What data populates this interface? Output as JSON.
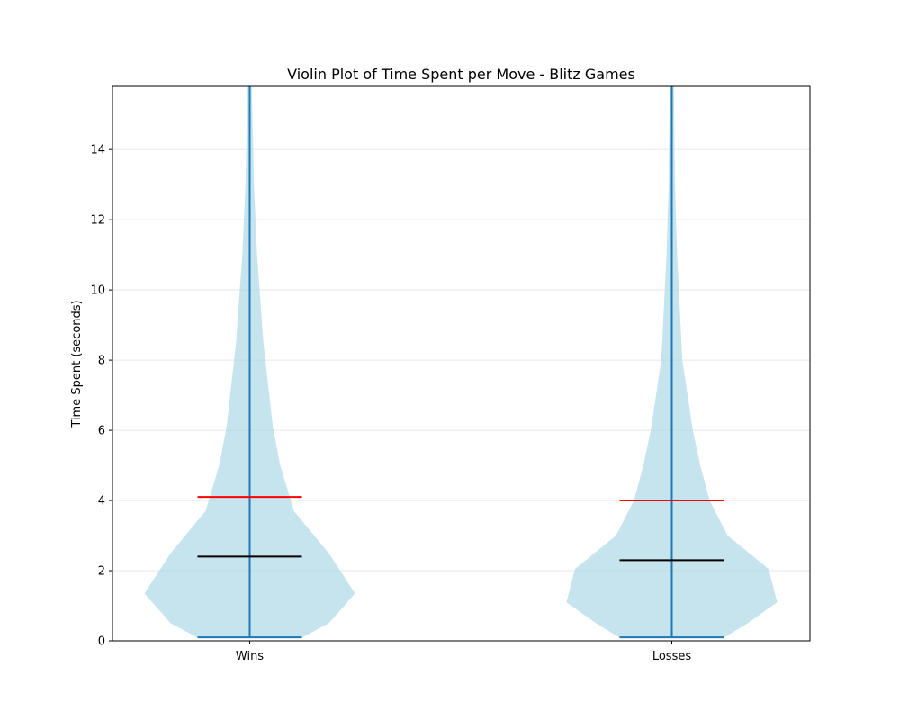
{
  "chart_data": {
    "type": "violin",
    "title": "Violin Plot of Time Spent per Move - Blitz Games",
    "xlabel": "",
    "ylabel": "Time Spent (seconds)",
    "ylim": [
      0,
      15.8
    ],
    "yticks": [
      0,
      2,
      4,
      6,
      8,
      10,
      12,
      14
    ],
    "grid": "y",
    "categories": [
      "Wins",
      "Losses"
    ],
    "series": [
      {
        "category": "Wins",
        "min": 0.1,
        "max": 15.8,
        "median": 2.4,
        "mean": 4.1,
        "density_profile": [
          [
            0.1,
            0.5
          ],
          [
            0.5,
            0.75
          ],
          [
            1.35,
            1.0
          ],
          [
            2.5,
            0.75
          ],
          [
            3.7,
            0.42
          ],
          [
            5.0,
            0.29
          ],
          [
            6.1,
            0.22
          ],
          [
            8.5,
            0.13
          ],
          [
            11.0,
            0.07
          ],
          [
            13.0,
            0.04
          ],
          [
            15.8,
            0.02
          ]
        ]
      },
      {
        "category": "Losses",
        "min": 0.1,
        "max": 15.8,
        "median": 2.3,
        "mean": 4.0,
        "density_profile": [
          [
            0.1,
            0.5
          ],
          [
            0.5,
            0.72
          ],
          [
            1.1,
            1.0
          ],
          [
            2.05,
            0.92
          ],
          [
            3.0,
            0.53
          ],
          [
            4.0,
            0.36
          ],
          [
            5.0,
            0.27
          ],
          [
            6.0,
            0.2
          ],
          [
            8.0,
            0.1
          ],
          [
            11.0,
            0.05
          ],
          [
            13.0,
            0.03
          ],
          [
            15.8,
            0.02
          ]
        ]
      }
    ],
    "colors": {
      "violin_fill": "#add8e6",
      "stem": "#1f77b4",
      "median": "#000000",
      "mean": "#ff0000",
      "grid": "#e6e6e6"
    }
  }
}
